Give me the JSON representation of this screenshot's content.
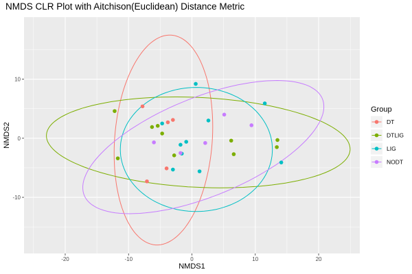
{
  "chart_data": {
    "type": "scatter",
    "title": "NMDS CLR Plot with Aitchison(Euclidean) Distance Metric",
    "xlabel": "NMDS1",
    "ylabel": "NMDS2",
    "xlim": [
      -26.5,
      26.5
    ],
    "ylim": [
      -19.5,
      20.5
    ],
    "x_ticks": [
      -20,
      -10,
      0,
      10,
      20
    ],
    "y_ticks": [
      -10,
      0,
      10
    ],
    "grid": true,
    "legend": {
      "title": "Group",
      "position": "right"
    },
    "series": [
      {
        "name": "DT",
        "color": "#F8766D",
        "points": [
          [
            -7.8,
            5.4
          ],
          [
            -3.8,
            2.7
          ],
          [
            -3.0,
            3.1
          ],
          [
            -4.0,
            -5.1
          ],
          [
            -7.1,
            -7.3
          ]
        ],
        "ellipse": {
          "cx": -4.5,
          "cy": -0.3,
          "rx": 7.7,
          "ry": 17.8,
          "angle": -4
        }
      },
      {
        "name": "DTLIG",
        "color": "#7CAE00",
        "points": [
          [
            -12.2,
            4.6
          ],
          [
            -6.3,
            1.9
          ],
          [
            -5.4,
            2.1
          ],
          [
            -4.7,
            0.8
          ],
          [
            -11.7,
            -3.4
          ],
          [
            -2.8,
            -2.9
          ],
          [
            6.2,
            -0.4
          ],
          [
            6.6,
            -2.7
          ],
          [
            13.5,
            -0.3
          ],
          [
            13.4,
            -1.5
          ]
        ],
        "ellipse": {
          "cx": 1.0,
          "cy": -0.7,
          "rx": 24.0,
          "ry": 7.6,
          "angle": -3
        }
      },
      {
        "name": "LIG",
        "color": "#00BFC4",
        "points": [
          [
            0.6,
            9.2
          ],
          [
            11.5,
            5.9
          ],
          [
            2.6,
            3.0
          ],
          [
            -4.7,
            2.5
          ],
          [
            -0.9,
            -0.6
          ],
          [
            -1.8,
            -1.1
          ],
          [
            -1.6,
            -2.6
          ],
          [
            -3.0,
            -5.3
          ],
          [
            1.2,
            -5.6
          ],
          [
            14.1,
            -4.1
          ]
        ],
        "ellipse": {
          "cx": 0.7,
          "cy": -1.9,
          "rx": 12.0,
          "ry": 10.5,
          "angle": 0
        }
      },
      {
        "name": "NODT",
        "color": "#C77CFF",
        "points": [
          [
            5.1,
            4.0
          ],
          [
            9.4,
            2.2
          ],
          [
            -6.0,
            -0.7
          ],
          [
            2.1,
            -0.8
          ],
          [
            -1.8,
            -2.5
          ]
        ],
        "ellipse": {
          "cx": 1.8,
          "cy": -1.5,
          "rx": 20.5,
          "ry": 8.3,
          "angle": 24
        }
      }
    ]
  }
}
